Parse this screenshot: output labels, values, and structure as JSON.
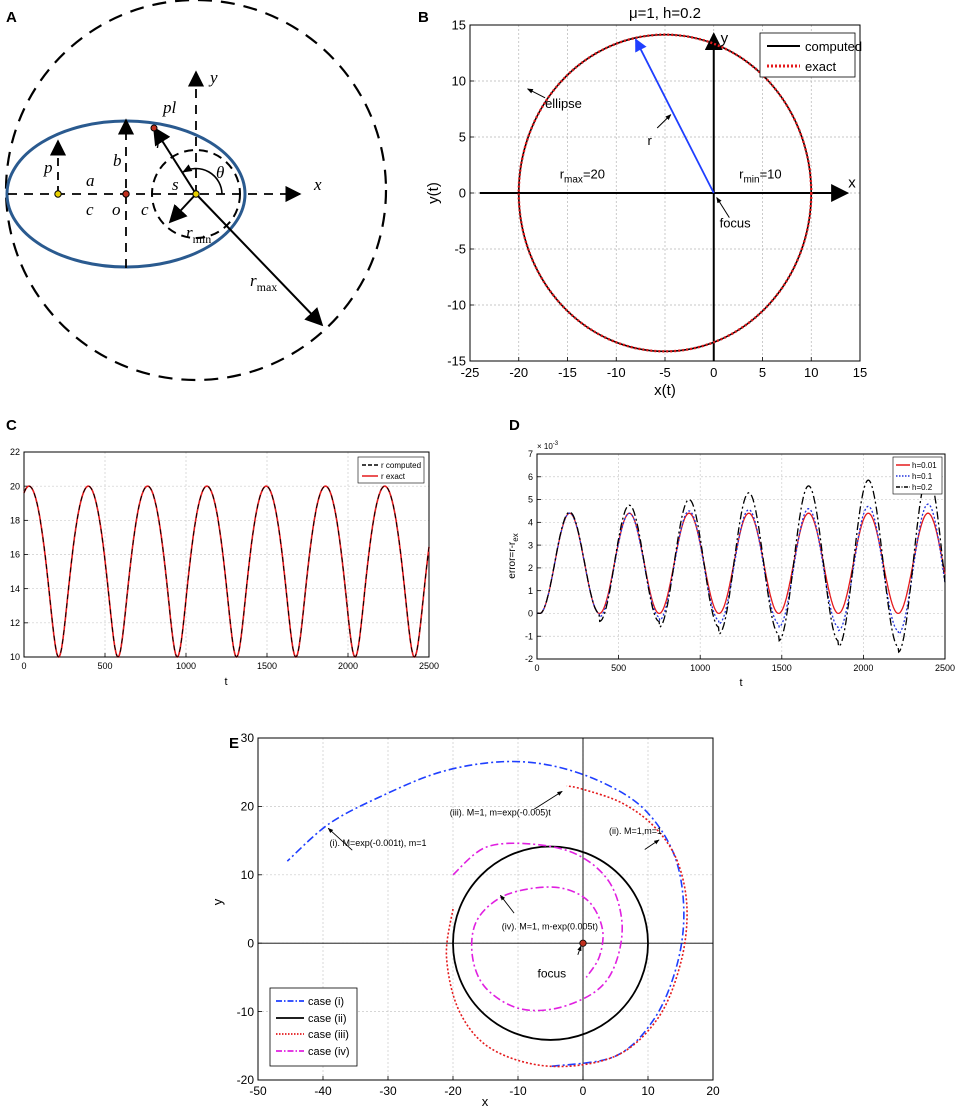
{
  "panels": {
    "A": {
      "label": "A",
      "symbols": {
        "x": "x",
        "y": "y",
        "p": "p",
        "pl": "pl",
        "r": "r",
        "a": "a",
        "b": "b",
        "c_left": "c",
        "c_right": "c",
        "o": "o",
        "s": "s",
        "theta": "θ",
        "rmin_base": "r",
        "rmin_sub": "min",
        "rmax_base": "r",
        "rmax_sub": "max"
      }
    },
    "B": {
      "label": "B"
    },
    "C": {
      "label": "C"
    },
    "D": {
      "label": "D"
    },
    "E": {
      "label": "E"
    }
  },
  "chart_data": [
    {
      "id": "B",
      "type": "line",
      "title": "μ=1, h=0.2",
      "xlabel": "x(t)",
      "ylabel": "y(t)",
      "xlim": [
        -25,
        15
      ],
      "ylim": [
        -15,
        15
      ],
      "xticks": [
        -25,
        -20,
        -15,
        -10,
        -5,
        0,
        5,
        10,
        15
      ],
      "yticks": [
        -15,
        -10,
        -5,
        0,
        5,
        10,
        15
      ],
      "grid": true,
      "legend_position": "top-right",
      "series": [
        {
          "name": "computed",
          "color": "#000000",
          "style": "solid",
          "shape": "ellipse",
          "center": [
            -5,
            0
          ],
          "semi_axes": [
            15,
            14.14
          ]
        },
        {
          "name": "exact",
          "color": "#e41a1c",
          "style": "dotted",
          "shape": "ellipse",
          "center": [
            -5,
            0
          ],
          "semi_axes": [
            15,
            14.14
          ]
        }
      ],
      "radius_vector": {
        "from": [
          0,
          0
        ],
        "to": [
          -8,
          13.7
        ],
        "color": "#1f3fff"
      },
      "annotations": {
        "x_axis": "x",
        "y_axis": "y",
        "ellipse": "ellipse",
        "r": "r",
        "focus": "focus",
        "rmax_base": "r",
        "rmax_sub": "max",
        "rmax_value": "=20",
        "rmin_base": "r",
        "rmin_sub": "min",
        "rmin_value": "=10"
      }
    },
    {
      "id": "C",
      "type": "line",
      "title": "",
      "xlabel": "t",
      "ylabel": "",
      "xlim": [
        0,
        2500
      ],
      "ylim": [
        10,
        22
      ],
      "xticks": [
        0,
        500,
        1000,
        1500,
        2000,
        2500
      ],
      "yticks": [
        10,
        12,
        14,
        16,
        18,
        20,
        22
      ],
      "grid": true,
      "legend_position": "top-right",
      "series": [
        {
          "name": "r computed",
          "color": "#000000",
          "style": "dashed",
          "model": "r=20/(1.5-0.5cos E), t=E-(1/3)sinE scaled",
          "period": 366,
          "t0": -152,
          "r_min": 10,
          "r_max": 20
        },
        {
          "name": "r exact",
          "color": "#e41a1c",
          "style": "solid",
          "model": "same",
          "period": 366,
          "t0": -152,
          "r_min": 10,
          "r_max": 20
        }
      ]
    },
    {
      "id": "D",
      "type": "line",
      "title": "",
      "xlabel": "t",
      "ylabel_base": "error=r-r",
      "ylabel_sub": "ex",
      "y_multiplier_base": "× 10",
      "y_multiplier_exp": "-3",
      "xlim": [
        0,
        2500
      ],
      "ylim": [
        -2,
        7
      ],
      "xticks": [
        0,
        500,
        1000,
        1500,
        2000,
        2500
      ],
      "yticks": [
        -2,
        -1,
        0,
        1,
        2,
        3,
        4,
        5,
        6,
        7
      ],
      "grid": true,
      "legend_position": "top-right",
      "series": [
        {
          "name": "h=0.01",
          "color": "#e41a1c",
          "style": "solid",
          "period": 366,
          "peak_t": 200,
          "peaks": [
            4.4,
            4.4,
            4.4,
            4.4,
            4.4,
            4.4,
            4.4
          ],
          "troughs": [
            0,
            0,
            0,
            0,
            0,
            0,
            0
          ]
        },
        {
          "name": "h=0.1",
          "color": "#2233dd",
          "style": "dotted",
          "period": 366,
          "peak_t": 200,
          "peaks": [
            4.4,
            4.4,
            4.5,
            4.55,
            4.6,
            4.7,
            4.8
          ],
          "troughs": [
            0,
            -0.15,
            -0.3,
            -0.45,
            -0.6,
            -0.75,
            -0.9
          ]
        },
        {
          "name": "h=0.2",
          "color": "#000000",
          "style": "dashdot",
          "period": 366,
          "peak_t": 200,
          "peaks": [
            4.45,
            4.75,
            5.0,
            5.3,
            5.6,
            5.85,
            6.1
          ],
          "troughs": [
            0,
            -0.35,
            -0.6,
            -0.9,
            -1.2,
            -1.45,
            -1.7
          ]
        }
      ]
    },
    {
      "id": "E",
      "type": "line",
      "title": "",
      "xlabel": "x",
      "ylabel": "y",
      "xlim": [
        -50,
        20
      ],
      "ylim": [
        -20,
        30
      ],
      "xticks": [
        -50,
        -40,
        -30,
        -20,
        -10,
        0,
        10,
        20
      ],
      "yticks": [
        -20,
        -10,
        0,
        10,
        20,
        30
      ],
      "grid": true,
      "legend_position": "bottom-left",
      "series": [
        {
          "name": "case (i)",
          "color": "#1f3fff",
          "style": "dashdot",
          "approx_points": [
            [
              -4.8,
              -18
            ],
            [
              5,
              -16.5
            ],
            [
              11,
              -11
            ],
            [
              14.5,
              -3
            ],
            [
              15.5,
              5
            ],
            [
              14,
              13
            ],
            [
              9.5,
              19.5
            ],
            [
              3,
              23.5
            ],
            [
              -5,
              26
            ],
            [
              -13,
              26.5
            ],
            [
              -22,
              25
            ],
            [
              -31,
              21.5
            ],
            [
              -39,
              17.5
            ],
            [
              -45.5,
              12
            ]
          ]
        },
        {
          "name": "case (ii)",
          "color": "#000000",
          "style": "solid",
          "ellipse": {
            "center": [
              -5,
              0
            ],
            "semi_axes": [
              15,
              14.14
            ]
          }
        },
        {
          "name": "case (iii)",
          "color": "#e41a1c",
          "style": "dotted",
          "approx_points": [
            [
              -20,
              5
            ],
            [
              -21,
              -2
            ],
            [
              -19,
              -10
            ],
            [
              -14,
              -15.5
            ],
            [
              -5,
              -18
            ],
            [
              5,
              -16.5
            ],
            [
              11.5,
              -11
            ],
            [
              15,
              -3
            ],
            [
              16,
              5
            ],
            [
              14.5,
              12
            ],
            [
              11,
              17
            ],
            [
              6,
              20.5
            ],
            [
              0,
              22.5
            ],
            [
              -2.5,
              23
            ]
          ]
        },
        {
          "name": "case (iv)",
          "color": "#e020e0",
          "style": "dashdot",
          "approx_points": [
            [
              -20,
              10
            ],
            [
              -15,
              14
            ],
            [
              -8,
              14.5
            ],
            [
              -1,
              13
            ],
            [
              4,
              9
            ],
            [
              6,
              3
            ],
            [
              5,
              -3
            ],
            [
              2,
              -7
            ],
            [
              -4,
              -9.5
            ],
            [
              -10,
              -9.5
            ],
            [
              -15,
              -6.5
            ],
            [
              -17,
              -2
            ],
            [
              -16.5,
              3
            ],
            [
              -13,
              6.5
            ],
            [
              -8,
              8
            ],
            [
              -3,
              8
            ],
            [
              1,
              6
            ],
            [
              3,
              2
            ],
            [
              2.5,
              -2
            ],
            [
              0.5,
              -5
            ]
          ]
        }
      ],
      "annotations": {
        "case_i": "(i). M=exp(-0.001t), m=1",
        "case_ii": "(ii). M=1,m=1",
        "case_iii": "(iii). M=1, m=exp(-0.005)t",
        "case_iv": "(iv). M=1, m-exp(0.005t)",
        "focus": "focus"
      }
    }
  ]
}
